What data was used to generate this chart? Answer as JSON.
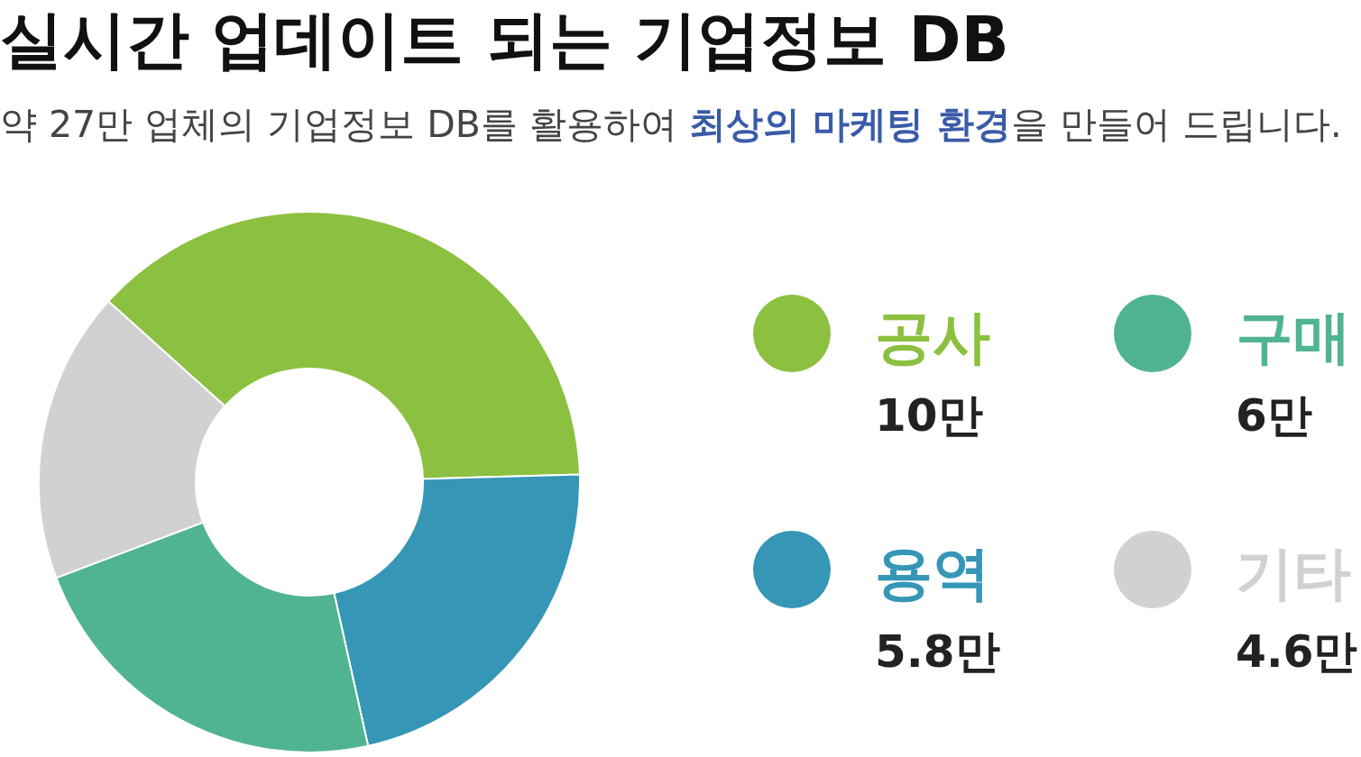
{
  "chart_data": {
    "type": "donut",
    "title": "실시간 업데이트 되는 기업정보 DB",
    "subtitle": "약 27만 업체의 기업정보 DB를 활용하여 **최상의 마케팅 환경**을 만들어 드립니다.",
    "categories": [
      "공사",
      "용역",
      "구매",
      "기타"
    ],
    "values": [
      10,
      5.8,
      6,
      4.6
    ],
    "colors": [
      "#8cc040",
      "#3596b6",
      "#50b490",
      "#d1d1d1"
    ],
    "value_labels": [
      "10만",
      "5.8만",
      "6만",
      "4.6만"
    ],
    "legend": "right"
  }
}
